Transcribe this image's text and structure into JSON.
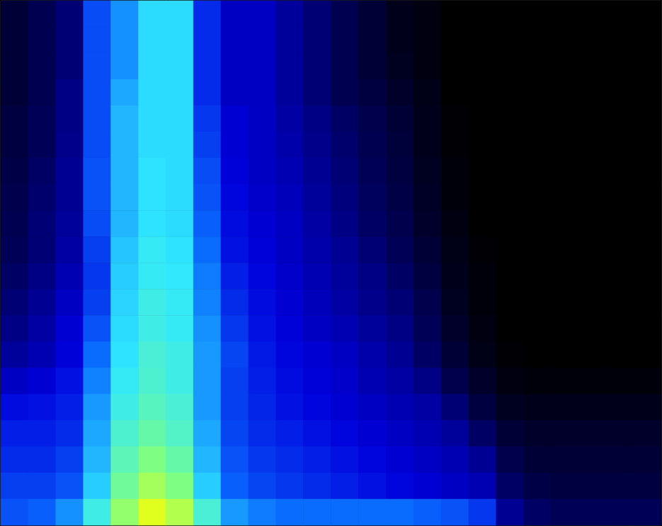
{
  "chart_data": {
    "type": "heatmap",
    "tick_labels": false,
    "color_range": [
      0,
      10
    ],
    "colors": [
      "#000000",
      "#00005a",
      "#0000dc",
      "#0a6cff",
      "#30e8ff",
      "#80ff80",
      "#ffff00"
    ],
    "cells": [
      [
        1,
        1.5,
        2,
        4.5,
        5.5,
        6.5,
        6.5,
        4,
        3,
        3,
        2.5,
        2,
        1.5,
        1,
        0.5,
        0.3,
        0,
        0,
        0,
        0,
        0,
        0,
        0,
        0
      ],
      [
        1,
        1.5,
        2,
        4.5,
        5.5,
        6.5,
        6.5,
        4,
        3,
        3,
        2.5,
        2,
        1.5,
        1,
        0.5,
        0.3,
        0,
        0,
        0,
        0,
        0,
        0,
        0,
        0
      ],
      [
        1,
        1.5,
        2,
        4.5,
        5.5,
        6.5,
        6.5,
        4,
        3,
        3,
        2.5,
        2,
        1.5,
        1,
        0.6,
        0.3,
        0,
        0,
        0,
        0,
        0,
        0,
        0,
        0
      ],
      [
        1,
        1.5,
        2.2,
        4.5,
        5.8,
        6.5,
        6.5,
        4,
        3,
        3,
        2.5,
        2,
        1.5,
        1.2,
        0.8,
        0.4,
        0,
        0,
        0,
        0,
        0,
        0,
        0,
        0
      ],
      [
        1.2,
        1.6,
        2.2,
        4.5,
        6,
        6.5,
        6.5,
        4.2,
        3.2,
        3,
        2.6,
        2.2,
        1.8,
        1.4,
        1,
        0.5,
        0.1,
        0,
        0,
        0,
        0,
        0,
        0,
        0
      ],
      [
        1.2,
        1.6,
        2.3,
        4.5,
        6,
        6.5,
        6.5,
        4.3,
        3.2,
        3,
        2.7,
        2.3,
        1.9,
        1.5,
        1.1,
        0.5,
        0.1,
        0,
        0,
        0,
        0,
        0,
        0,
        0
      ],
      [
        1.3,
        1.8,
        2.4,
        4.6,
        6,
        6.6,
        6.5,
        4.5,
        3.3,
        3,
        2.8,
        2.4,
        2,
        1.6,
        1.2,
        0.6,
        0.2,
        0,
        0,
        0,
        0,
        0,
        0,
        0
      ],
      [
        1.4,
        1.9,
        2.4,
        4.6,
        6,
        6.6,
        6.5,
        4.6,
        3.4,
        3.1,
        2.9,
        2.5,
        2.1,
        1.7,
        1.3,
        0.7,
        0.2,
        0,
        0,
        0,
        0,
        0,
        0,
        0
      ],
      [
        1.5,
        2,
        2.5,
        4.5,
        6,
        6.6,
        6.5,
        4.8,
        3.5,
        3.2,
        3,
        2.6,
        2.2,
        1.8,
        1.4,
        0.8,
        0.3,
        0,
        0,
        0,
        0,
        0,
        0,
        0
      ],
      [
        1.6,
        2,
        2.6,
        4.3,
        6.2,
        6.8,
        6.6,
        5,
        3.6,
        3.3,
        3,
        2.7,
        2.4,
        2,
        1.6,
        1,
        0.4,
        0.1,
        0,
        0,
        0,
        0,
        0,
        0
      ],
      [
        1.8,
        2.2,
        2.8,
        4.2,
        6.3,
        6.8,
        6.7,
        5.2,
        3.8,
        3.4,
        3.1,
        2.8,
        2.5,
        2.2,
        1.8,
        1.2,
        0.5,
        0.2,
        0,
        0,
        0,
        0,
        0,
        0
      ],
      [
        2,
        2.4,
        3,
        4.3,
        6.4,
        7,
        6.8,
        5.3,
        4,
        3.5,
        3.2,
        2.9,
        2.6,
        2.3,
        2,
        1.4,
        0.6,
        0.2,
        0,
        0,
        0,
        0,
        0,
        0
      ],
      [
        2.2,
        2.6,
        3.2,
        4.6,
        6.5,
        7,
        6.8,
        5.5,
        4.2,
        3.6,
        3.3,
        3,
        2.8,
        2.5,
        2.2,
        1.6,
        0.8,
        0.3,
        0,
        0,
        0,
        0,
        0,
        0
      ],
      [
        2.5,
        2.8,
        3.3,
        5,
        6.6,
        7.2,
        7,
        5.6,
        4.4,
        3.7,
        3.4,
        3.2,
        3,
        2.7,
        2.4,
        1.8,
        1,
        0.4,
        0.1,
        0,
        0,
        0,
        0,
        0
      ],
      [
        3,
        3.2,
        3.6,
        5.3,
        6.8,
        7.3,
        7,
        5.6,
        4.3,
        3.8,
        3.5,
        3.3,
        3.1,
        2.8,
        2.6,
        2.2,
        1.4,
        0.8,
        0.3,
        0.2,
        0.2,
        0.2,
        0.2,
        0.2
      ],
      [
        3.5,
        3.6,
        3.8,
        5.6,
        7,
        7.5,
        7.2,
        5.6,
        4.3,
        3.9,
        3.6,
        3.4,
        3.2,
        3,
        2.8,
        2.6,
        2,
        1.2,
        0.6,
        0.5,
        0.5,
        0.5,
        0.5,
        0.5
      ],
      [
        3.8,
        3.8,
        4,
        5.8,
        7.3,
        7.8,
        7.4,
        5.8,
        4.4,
        4,
        3.8,
        3.6,
        3.4,
        3.2,
        3,
        2.8,
        2.5,
        1.8,
        1,
        0.8,
        0.8,
        0.8,
        0.8,
        0.8
      ],
      [
        4,
        4,
        4.3,
        6,
        7.6,
        8.3,
        7.8,
        6,
        4.6,
        4.2,
        4,
        3.8,
        3.6,
        3.4,
        3.2,
        3,
        2.8,
        2.4,
        1.4,
        1,
        1,
        1,
        1,
        1
      ],
      [
        4.3,
        4.3,
        4.6,
        6.3,
        8,
        8.8,
        8.3,
        6.3,
        4.8,
        4.4,
        4.2,
        4,
        3.8,
        3.6,
        3.4,
        3.2,
        3,
        2.8,
        1.8,
        1.3,
        1.2,
        1.2,
        1.2,
        1.2
      ],
      [
        4.6,
        4.8,
        5.5,
        7,
        8.6,
        9.6,
        9,
        7.2,
        5.6,
        5.2,
        5,
        5,
        5,
        5,
        5,
        4.8,
        4.6,
        4.2,
        2.4,
        1.8,
        1.6,
        1.6,
        1.6,
        1.6
      ]
    ]
  }
}
